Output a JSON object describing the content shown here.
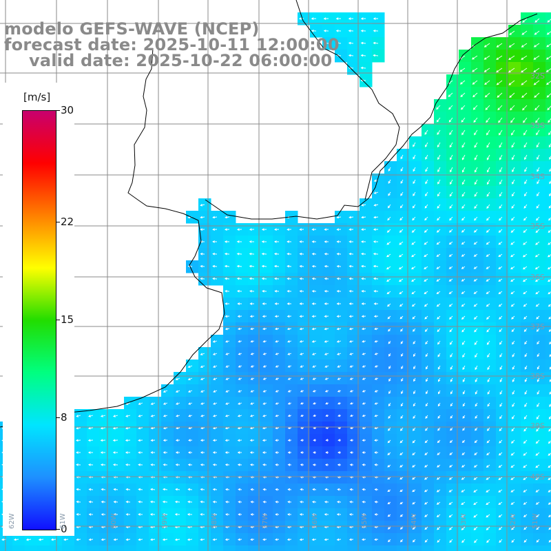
{
  "title": {
    "line1": "modelo GEFS-WAVE (NCEP)",
    "line2": "forecast date: 2025-10-11 12:00:00",
    "line3": "valid date: 2025-10-22 06:00:00"
  },
  "colorbar": {
    "unit": "[m/s]",
    "ticks": [
      {
        "label": "30",
        "value": 30
      },
      {
        "label": "22",
        "value": 22
      },
      {
        "label": "15",
        "value": 15
      },
      {
        "label": "8",
        "value": 8
      },
      {
        "label": "0",
        "value": 0
      }
    ],
    "colors": [
      "#1010ff",
      "#1e90ff",
      "#00e5ff",
      "#00ff80",
      "#22dd00",
      "#ffff00",
      "#ff8000",
      "#ff0000",
      "#c8006e"
    ]
  },
  "lat_labels": [
    "32S",
    "33S",
    "34S",
    "35S",
    "36S",
    "37S",
    "38S",
    "39S",
    "40S"
  ],
  "lon_labels": [
    "62W",
    "61W",
    "60W",
    "59W",
    "58W",
    "57W",
    "56W",
    "55W",
    "54W",
    "53W",
    "52W",
    "51W"
  ],
  "map_extent": {
    "lon_min": -63,
    "lon_max": -50,
    "lat_min": -41,
    "lat_max": -30
  },
  "colors": {
    "land": "#ffffff",
    "grid": "#8a8a8a",
    "coast": "#000000",
    "arrow": "#ffffff"
  }
}
